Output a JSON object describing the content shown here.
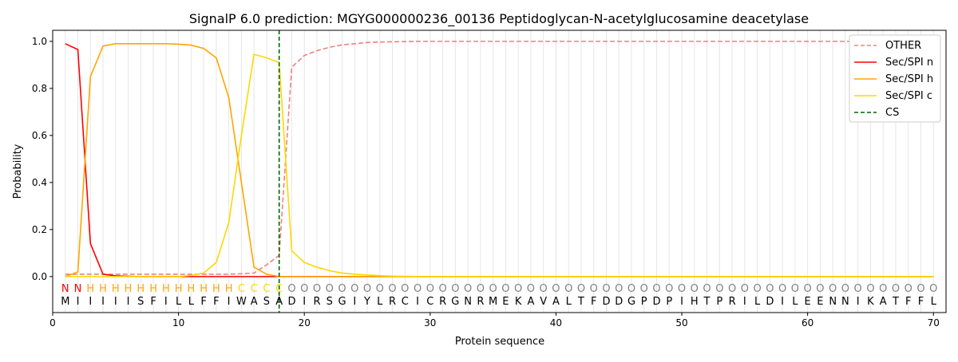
{
  "chart_data": {
    "type": "line",
    "title": "SignalP 6.0 prediction: MGYG000000236_00136 Peptidoglycan-N-acetylglucosamine deacetylase",
    "xlabel": "Protein sequence",
    "ylabel": "Probability",
    "xlim": [
      0,
      71
    ],
    "ylim": [
      -0.153,
      1.047
    ],
    "xticks": [
      0,
      10,
      20,
      30,
      40,
      50,
      60,
      70
    ],
    "yticks": [
      "0.0",
      "0.2",
      "0.4",
      "0.6",
      "0.8",
      "1.0"
    ],
    "legend_position": "top-right",
    "sequence": "MIIIIISFILLFFIWASADIRSGIYLRCICRGNRMEKAVALTFDDGPDPIHTPRILDILEENNIKATFFL",
    "labels": "NNHHHHHHHHHHHHCCCCOOOOOOOOOOOOOOOOOOOOOOOOOOOOOOOOOOOOOOOOOOOOOOOOOOOO",
    "label_colors": {
      "N": "#ff0000",
      "H": "#ffa500",
      "C": "#ffd700",
      "O": "#808080"
    },
    "cs_position": 18,
    "series": [
      {
        "name": "OTHER",
        "color": "#f08080",
        "dash": true,
        "values": [
          0.01,
          0.01,
          0.01,
          0.01,
          0.01,
          0.01,
          0.01,
          0.01,
          0.01,
          0.01,
          0.01,
          0.01,
          0.01,
          0.01,
          0.012,
          0.015,
          0.05,
          0.09,
          0.89,
          0.94,
          0.96,
          0.975,
          0.985,
          0.99,
          0.995,
          0.997,
          0.998,
          0.999,
          1,
          1,
          1,
          1,
          1,
          1,
          1,
          1,
          1,
          1,
          1,
          1,
          1,
          1,
          1,
          1,
          1,
          1,
          1,
          1,
          1,
          1,
          1,
          1,
          1,
          1,
          1,
          1,
          1,
          1,
          1,
          1,
          1,
          1,
          1,
          1,
          1,
          1,
          1,
          1,
          1,
          1
        ]
      },
      {
        "name": "Sec/SPI n",
        "color": "#ff0000",
        "values": [
          0.99,
          0.965,
          0.14,
          0.01,
          0.003,
          0.001,
          0,
          0,
          0,
          0,
          0,
          0,
          0,
          0,
          0,
          0,
          0,
          0,
          0,
          0,
          0,
          0,
          0,
          0,
          0,
          0,
          0,
          0,
          0,
          0,
          0,
          0,
          0,
          0,
          0,
          0,
          0,
          0,
          0,
          0,
          0,
          0,
          0,
          0,
          0,
          0,
          0,
          0,
          0,
          0,
          0,
          0,
          0,
          0,
          0,
          0,
          0,
          0,
          0,
          0,
          0,
          0,
          0,
          0,
          0,
          0,
          0,
          0,
          0,
          0
        ]
      },
      {
        "name": "Sec/SPI h",
        "color": "#ffa500",
        "values": [
          0.0,
          0.02,
          0.85,
          0.98,
          0.99,
          0.99,
          0.99,
          0.99,
          0.99,
          0.988,
          0.984,
          0.97,
          0.93,
          0.76,
          0.4,
          0.04,
          0.01,
          0.0,
          0,
          0,
          0,
          0,
          0,
          0,
          0,
          0,
          0,
          0,
          0,
          0,
          0,
          0,
          0,
          0,
          0,
          0,
          0,
          0,
          0,
          0,
          0,
          0,
          0,
          0,
          0,
          0,
          0,
          0,
          0,
          0,
          0,
          0,
          0,
          0,
          0,
          0,
          0,
          0,
          0,
          0,
          0,
          0,
          0,
          0,
          0,
          0,
          0,
          0,
          0,
          0
        ]
      },
      {
        "name": "Sec/SPI c",
        "color": "#ffd700",
        "values": [
          0,
          0,
          0,
          0,
          0,
          0,
          0,
          0,
          0,
          0,
          0.005,
          0.015,
          0.06,
          0.23,
          0.6,
          0.945,
          0.93,
          0.91,
          0.11,
          0.06,
          0.04,
          0.025,
          0.015,
          0.01,
          0.007,
          0.004,
          0.002,
          0.001,
          0,
          0,
          0,
          0,
          0,
          0,
          0,
          0,
          0,
          0,
          0,
          0,
          0,
          0,
          0,
          0,
          0,
          0,
          0,
          0,
          0,
          0,
          0,
          0,
          0,
          0,
          0,
          0,
          0,
          0,
          0,
          0,
          0,
          0,
          0,
          0,
          0,
          0,
          0,
          0,
          0,
          0
        ]
      }
    ],
    "cs_legend": "CS",
    "cs_color": "#006400"
  }
}
